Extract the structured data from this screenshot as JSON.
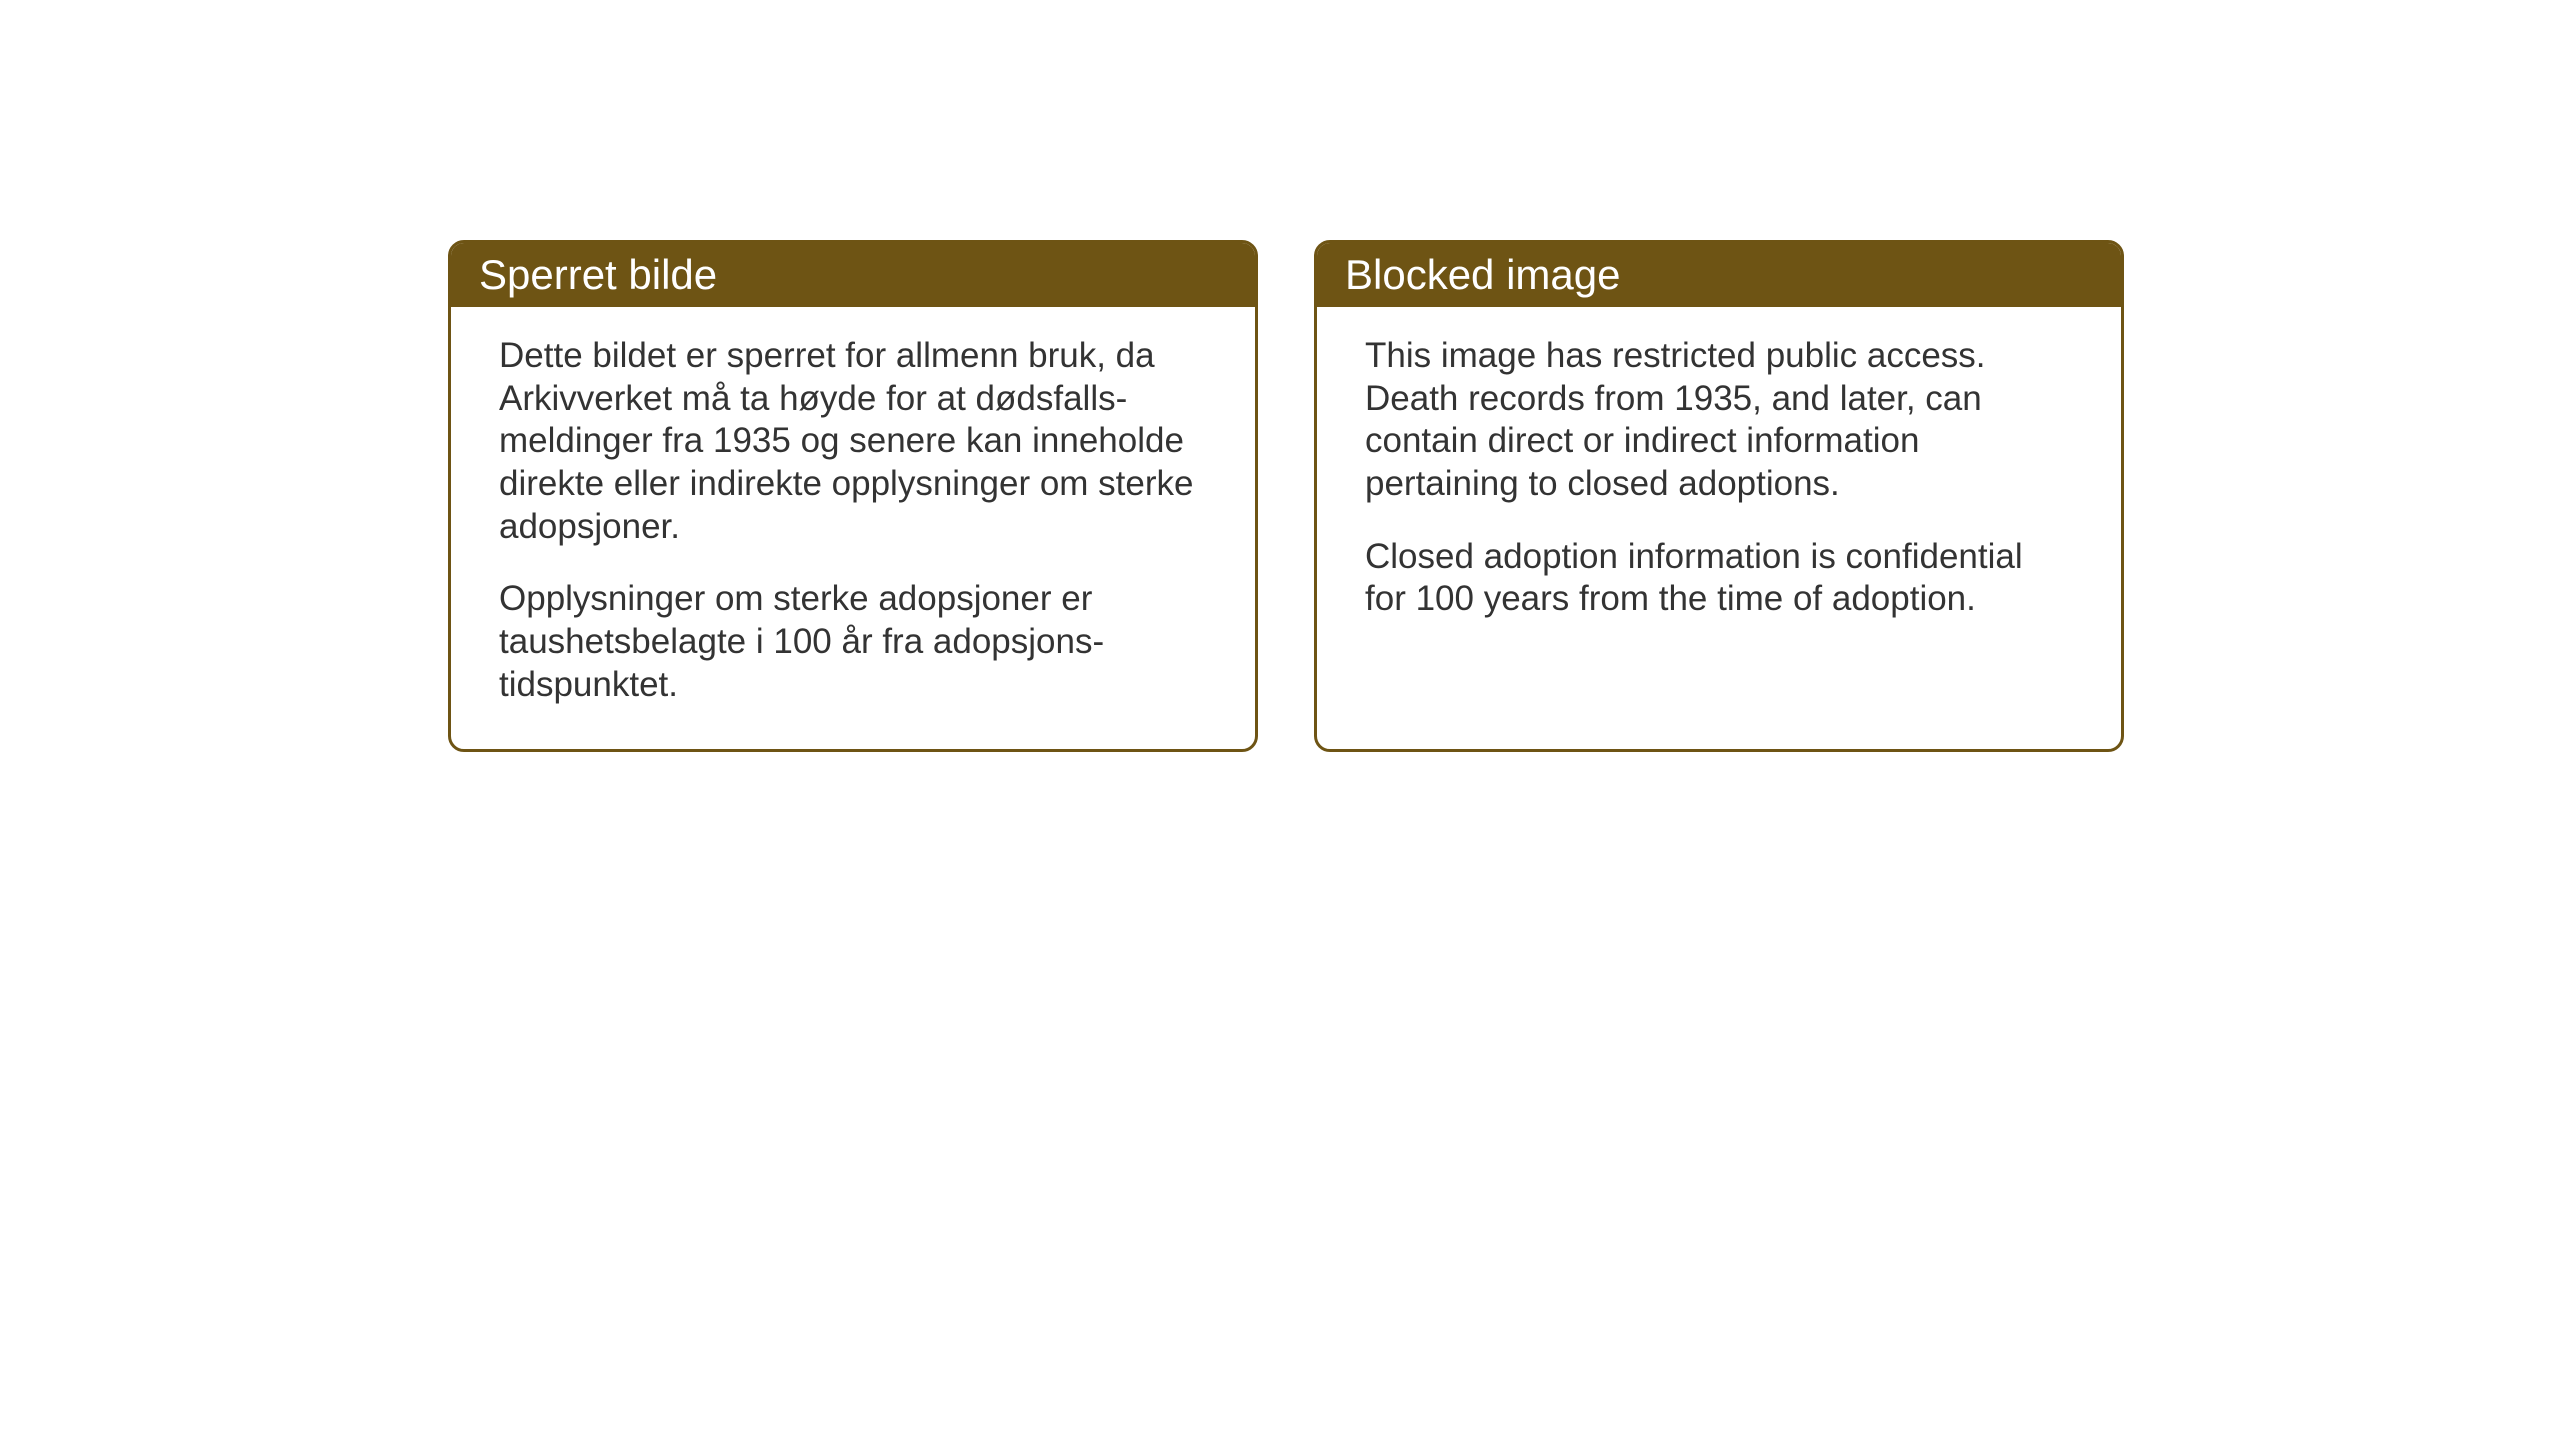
{
  "cards": {
    "norwegian": {
      "title": "Sperret bilde",
      "paragraph1": "Dette bildet er sperret for allmenn bruk, da Arkivverket må ta høyde for at dødsfalls-meldinger fra 1935 og senere kan inneholde direkte eller indirekte opplysninger om sterke adopsjoner.",
      "paragraph2": "Opplysninger om sterke adopsjoner er taushetsbelagte i 100 år fra adopsjons-tidspunktet."
    },
    "english": {
      "title": "Blocked image",
      "paragraph1": "This image has restricted public access. Death records from 1935, and later, can contain direct or indirect information pertaining to closed adoptions.",
      "paragraph2": "Closed adoption information is confidential for 100 years from the time of adoption."
    }
  },
  "styling": {
    "header_bg_color": "#6e5414",
    "header_text_color": "#ffffff",
    "border_color": "#6e5414",
    "body_bg_color": "#ffffff",
    "body_text_color": "#333333",
    "header_font_size": 42,
    "body_font_size": 35,
    "border_radius": 16,
    "border_width": 3
  }
}
